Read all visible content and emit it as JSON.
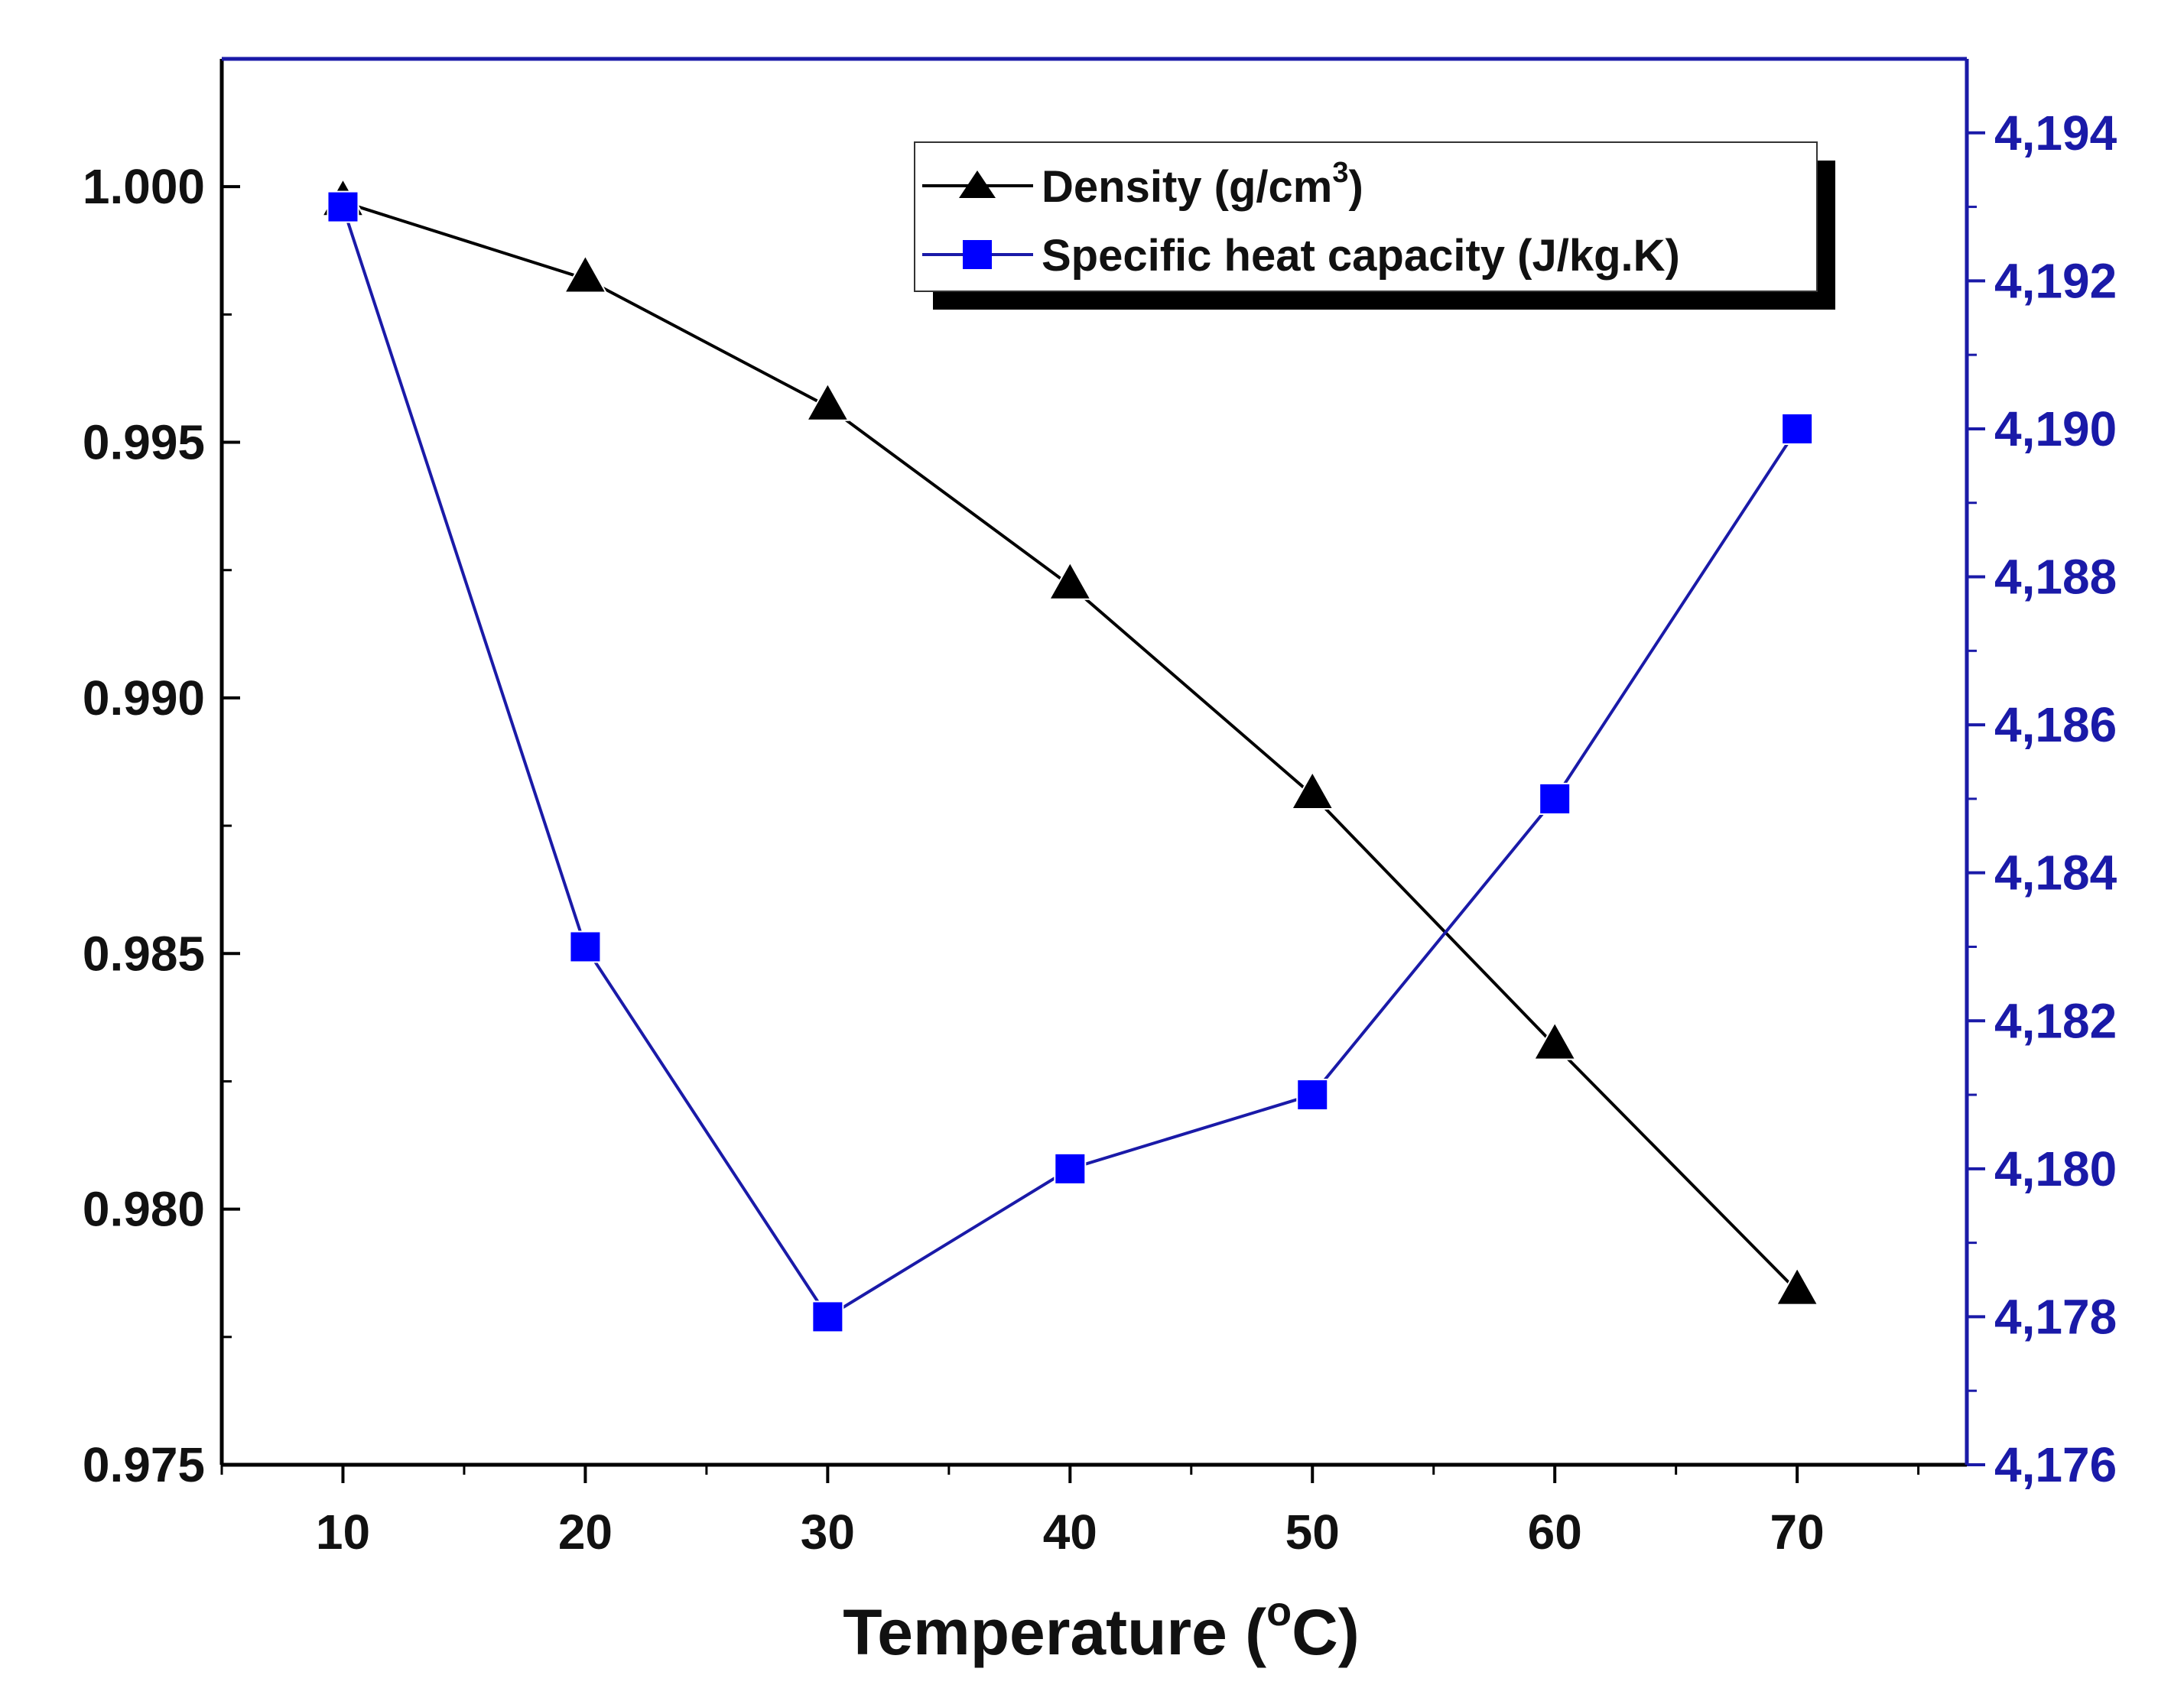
{
  "chart_data": {
    "type": "line",
    "title": "",
    "xlabel": "Temperature (",
    "xlabel_sup": "o",
    "xlabel_end": "C)",
    "x": [
      10,
      20,
      30,
      40,
      50,
      60,
      70
    ],
    "xlim": [
      5,
      77
    ],
    "xticks": [
      10,
      20,
      30,
      40,
      50,
      60,
      70
    ],
    "xtick_labels": [
      "10",
      "20",
      "30",
      "40",
      "50",
      "60",
      "70"
    ],
    "left_axis": {
      "ylim": [
        0.975,
        1.0025
      ],
      "ticks": [
        0.975,
        0.98,
        0.985,
        0.99,
        0.995,
        1.0
      ],
      "tick_labels": [
        "0.975",
        "0.980",
        "0.985",
        "0.990",
        "0.995",
        "1.000"
      ],
      "color": "#111111"
    },
    "right_axis": {
      "ylim": [
        4176,
        4195
      ],
      "ticks": [
        4176,
        4178,
        4180,
        4182,
        4184,
        4186,
        4188,
        4190,
        4192,
        4194
      ],
      "tick_labels": [
        "4,176",
        "4,178",
        "4,180",
        "4,182",
        "4,184",
        "4,186",
        "4,188",
        "4,190",
        "4,192",
        "4,194"
      ],
      "color": "#1a1aa8"
    },
    "series": [
      {
        "name": "Density (g/cm",
        "name_sup": "3",
        "name_end": ")",
        "axis": "left",
        "marker": "triangle",
        "line_color": "#000000",
        "marker_color": "#000000",
        "values": [
          0.9997,
          0.9982,
          0.9957,
          0.9922,
          0.9881,
          0.9832,
          0.9784
        ]
      },
      {
        "name": "Specific heat capacity (J/kg.K)",
        "axis": "right",
        "marker": "square",
        "line_color": "#1a1aa8",
        "marker_color": "#0000ff",
        "values": [
          4193,
          4183,
          4178,
          4180,
          4181,
          4185,
          4190
        ]
      }
    ],
    "legend_position": "top-right",
    "grid": false
  }
}
